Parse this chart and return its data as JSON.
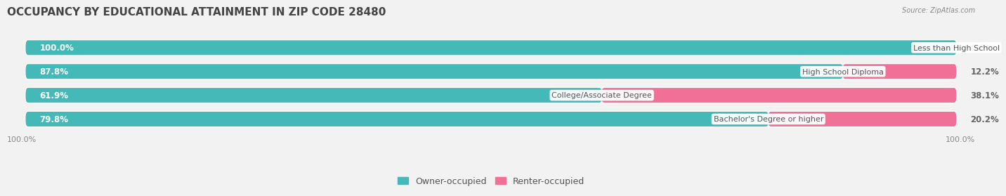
{
  "title": "OCCUPANCY BY EDUCATIONAL ATTAINMENT IN ZIP CODE 28480",
  "source": "Source: ZipAtlas.com",
  "categories": [
    "Less than High School",
    "High School Diploma",
    "College/Associate Degree",
    "Bachelor's Degree or higher"
  ],
  "owner_pct": [
    100.0,
    87.8,
    61.9,
    79.8
  ],
  "renter_pct": [
    0.0,
    12.2,
    38.1,
    20.2
  ],
  "owner_color": "#45B8B8",
  "renter_color": "#F07098",
  "bg_color": "#f2f2f2",
  "bar_bg_color": "#e0e0e0",
  "row_bg_color": "#e8e8e8",
  "title_fontsize": 11,
  "label_fontsize": 8.5,
  "axis_label_fontsize": 8,
  "legend_fontsize": 9,
  "bar_height": 0.62,
  "total_width": 100.0,
  "owner_label_color": "#ffffff",
  "renter_label_color": "#666666",
  "category_label_color": "#555555"
}
